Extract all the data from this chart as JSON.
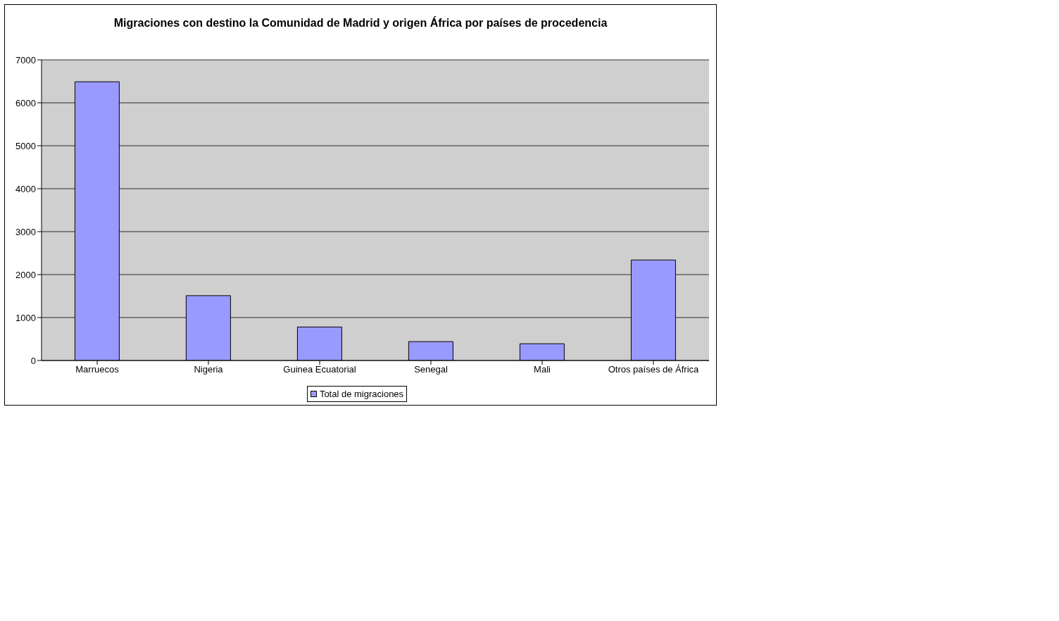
{
  "chart_data": {
    "type": "bar",
    "title": "Migraciones con destino la Comunidad de Madrid y origen  África por países de procedencia",
    "categories": [
      "Marruecos",
      "Nigeria",
      "Guinea Ecuatorial",
      "Senegal",
      "Mali",
      "Otros países de África"
    ],
    "series": [
      {
        "name": "Total de migraciones",
        "color": "#9999ff",
        "values": [
          6490,
          1510,
          780,
          440,
          390,
          2340
        ]
      }
    ],
    "ylim": [
      0,
      7000
    ],
    "yticks": [
      0,
      1000,
      2000,
      3000,
      4000,
      5000,
      6000,
      7000
    ],
    "grid": "y",
    "legend": "bottom"
  }
}
